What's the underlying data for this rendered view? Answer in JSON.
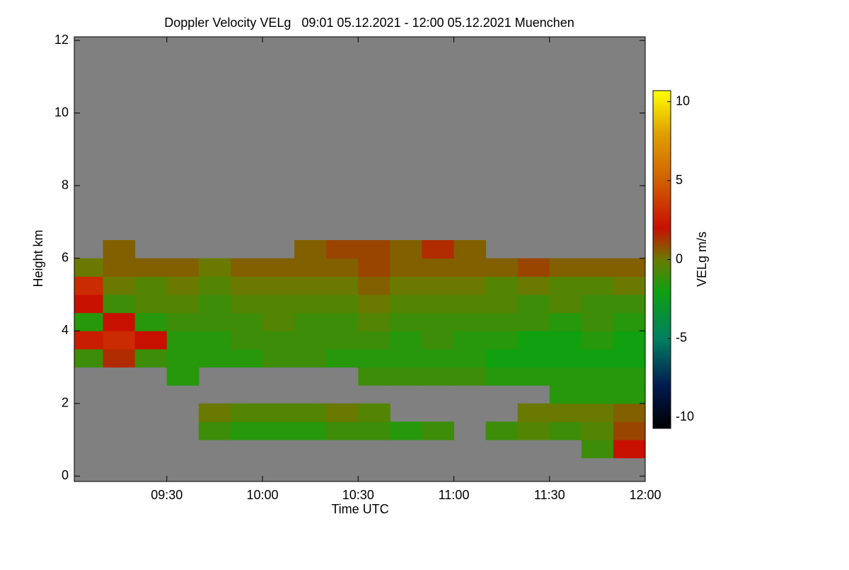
{
  "chart_data": {
    "type": "heatmap",
    "title": "Doppler Velocity VELg   09:01 05.12.2021 - 12:00 05.12.2021 Muenchen",
    "x_label": "Time UTC",
    "y_label": "Height km",
    "colorbar_label": "VELg m/s",
    "xlim": [
      1,
      180
    ],
    "xticks": [
      {
        "value": 30,
        "label": "09:30"
      },
      {
        "value": 60,
        "label": "10:00"
      },
      {
        "value": 90,
        "label": "10:30"
      },
      {
        "value": 120,
        "label": "11:00"
      },
      {
        "value": 150,
        "label": "11:30"
      },
      {
        "value": 180,
        "label": "12:00"
      }
    ],
    "ylim": [
      -0.15,
      12.1
    ],
    "yticks": [
      0,
      2,
      4,
      6,
      8,
      10,
      12
    ],
    "clim": [
      -10.7,
      10.7
    ],
    "cticks": [
      -10,
      -5,
      0,
      5,
      10
    ],
    "background": "#808080",
    "colormap": [
      {
        "value": -10.7,
        "color": "#000000"
      },
      {
        "value": -8,
        "color": "#001a50"
      },
      {
        "value": -5,
        "color": "#008060"
      },
      {
        "value": -2,
        "color": "#10a010"
      },
      {
        "value": 0,
        "color": "#6a7a00"
      },
      {
        "value": 2,
        "color": "#c81000"
      },
      {
        "value": 5,
        "color": "#d06000"
      },
      {
        "value": 8,
        "color": "#e0a000"
      },
      {
        "value": 10.7,
        "color": "#ffff00"
      }
    ],
    "x_bins": [
      0,
      10,
      20,
      30,
      40,
      50,
      60,
      70,
      80,
      90,
      100,
      110,
      120,
      130,
      140,
      150,
      160,
      170,
      180
    ],
    "y_bins": [
      0,
      0.5,
      1,
      1.5,
      2,
      2.5,
      3,
      3.5,
      4,
      4.5,
      5,
      5.5,
      6,
      6.5,
      7,
      7.5,
      8,
      8.5,
      9,
      9.5,
      10,
      10.5,
      11,
      11.5,
      12
    ],
    "z": [
      [
        null,
        null,
        null,
        null,
        null,
        null,
        null,
        null,
        null,
        null,
        null,
        null,
        null,
        null,
        null,
        null,
        null,
        null
      ],
      [
        null,
        null,
        null,
        null,
        null,
        null,
        null,
        null,
        null,
        null,
        null,
        null,
        null,
        null,
        null,
        null,
        -1,
        2
      ],
      [
        null,
        null,
        null,
        null,
        -1,
        -1.5,
        -1.5,
        -1.5,
        -1,
        -1,
        -1.5,
        -1,
        null,
        -1,
        -0.5,
        -1,
        -0.5,
        1
      ],
      [
        null,
        null,
        null,
        null,
        0,
        -0.5,
        -0.5,
        -0.5,
        0,
        -0.5,
        null,
        null,
        null,
        null,
        0,
        0,
        0,
        0.5
      ],
      [
        null,
        null,
        null,
        null,
        null,
        null,
        null,
        null,
        null,
        null,
        null,
        null,
        null,
        null,
        null,
        -1.5,
        -1.5,
        -1.5
      ],
      [
        null,
        null,
        null,
        -1.5,
        null,
        null,
        null,
        null,
        null,
        -1,
        -1,
        -1,
        -1,
        -1.5,
        -1.5,
        -1.5,
        -1.5,
        -1.5
      ],
      [
        -1,
        1.5,
        -1,
        -1.5,
        -1.5,
        -1.5,
        -1,
        -1,
        -1.5,
        -1.5,
        -1.5,
        -1.5,
        -1.5,
        -2,
        -2,
        -2,
        -2,
        -2
      ],
      [
        2.5,
        3,
        2,
        -1.5,
        -1.5,
        -1,
        -1,
        -1,
        -1,
        -1,
        -1.5,
        -1,
        -1.5,
        -1.5,
        -2,
        -2,
        -1.5,
        -2
      ],
      [
        -1.5,
        2,
        -1.5,
        -1,
        -1,
        -1,
        -0.5,
        -1,
        -1,
        -0.5,
        -1,
        -1,
        -1,
        -1,
        -1,
        -1.5,
        -1,
        -1.5
      ],
      [
        2,
        -1,
        -0.5,
        -0.5,
        -1,
        -0.5,
        -0.5,
        -0.5,
        -0.5,
        0,
        -0.5,
        -0.5,
        -0.5,
        -0.5,
        -1,
        -0.5,
        -1,
        -1
      ],
      [
        3,
        0,
        -0.5,
        0,
        -0.5,
        0,
        0,
        0,
        0,
        0.5,
        0,
        0,
        0,
        -0.5,
        0,
        -0.5,
        -0.5,
        0
      ],
      [
        0,
        0.5,
        0.5,
        0.5,
        0,
        0.5,
        0.5,
        0.5,
        0.5,
        1,
        0.5,
        0.5,
        0.5,
        0.5,
        1,
        0.5,
        0.5,
        0.5
      ],
      [
        null,
        0.5,
        null,
        null,
        null,
        null,
        null,
        0.5,
        1,
        1,
        0.5,
        1.5,
        0.5,
        null,
        null,
        null,
        null,
        null
      ],
      [
        null,
        null,
        null,
        null,
        null,
        null,
        null,
        null,
        null,
        null,
        null,
        null,
        null,
        null,
        null,
        null,
        null,
        null
      ],
      [
        null,
        null,
        null,
        null,
        null,
        null,
        null,
        null,
        null,
        null,
        null,
        null,
        null,
        null,
        null,
        null,
        null,
        null
      ],
      [
        null,
        null,
        null,
        null,
        null,
        null,
        null,
        null,
        null,
        null,
        null,
        null,
        null,
        null,
        null,
        null,
        null,
        null
      ],
      [
        null,
        null,
        null,
        null,
        null,
        null,
        null,
        null,
        null,
        null,
        null,
        null,
        null,
        null,
        null,
        null,
        null,
        null
      ],
      [
        null,
        null,
        null,
        null,
        null,
        null,
        null,
        null,
        null,
        null,
        null,
        null,
        null,
        null,
        null,
        null,
        null,
        null
      ],
      [
        null,
        null,
        null,
        null,
        null,
        null,
        null,
        null,
        null,
        null,
        null,
        null,
        null,
        null,
        null,
        null,
        null,
        null
      ],
      [
        null,
        null,
        null,
        null,
        null,
        null,
        null,
        null,
        null,
        null,
        null,
        null,
        null,
        null,
        null,
        null,
        null,
        null
      ],
      [
        null,
        null,
        null,
        null,
        null,
        null,
        null,
        null,
        null,
        null,
        null,
        null,
        null,
        null,
        null,
        null,
        null,
        null
      ],
      [
        null,
        null,
        null,
        null,
        null,
        null,
        null,
        null,
        null,
        null,
        null,
        null,
        null,
        null,
        null,
        null,
        null,
        null
      ],
      [
        null,
        null,
        null,
        null,
        null,
        null,
        null,
        null,
        null,
        null,
        null,
        null,
        null,
        null,
        null,
        null,
        null,
        null
      ],
      [
        null,
        null,
        null,
        null,
        null,
        null,
        null,
        null,
        null,
        null,
        null,
        null,
        null,
        null,
        null,
        null,
        null,
        null
      ]
    ]
  }
}
